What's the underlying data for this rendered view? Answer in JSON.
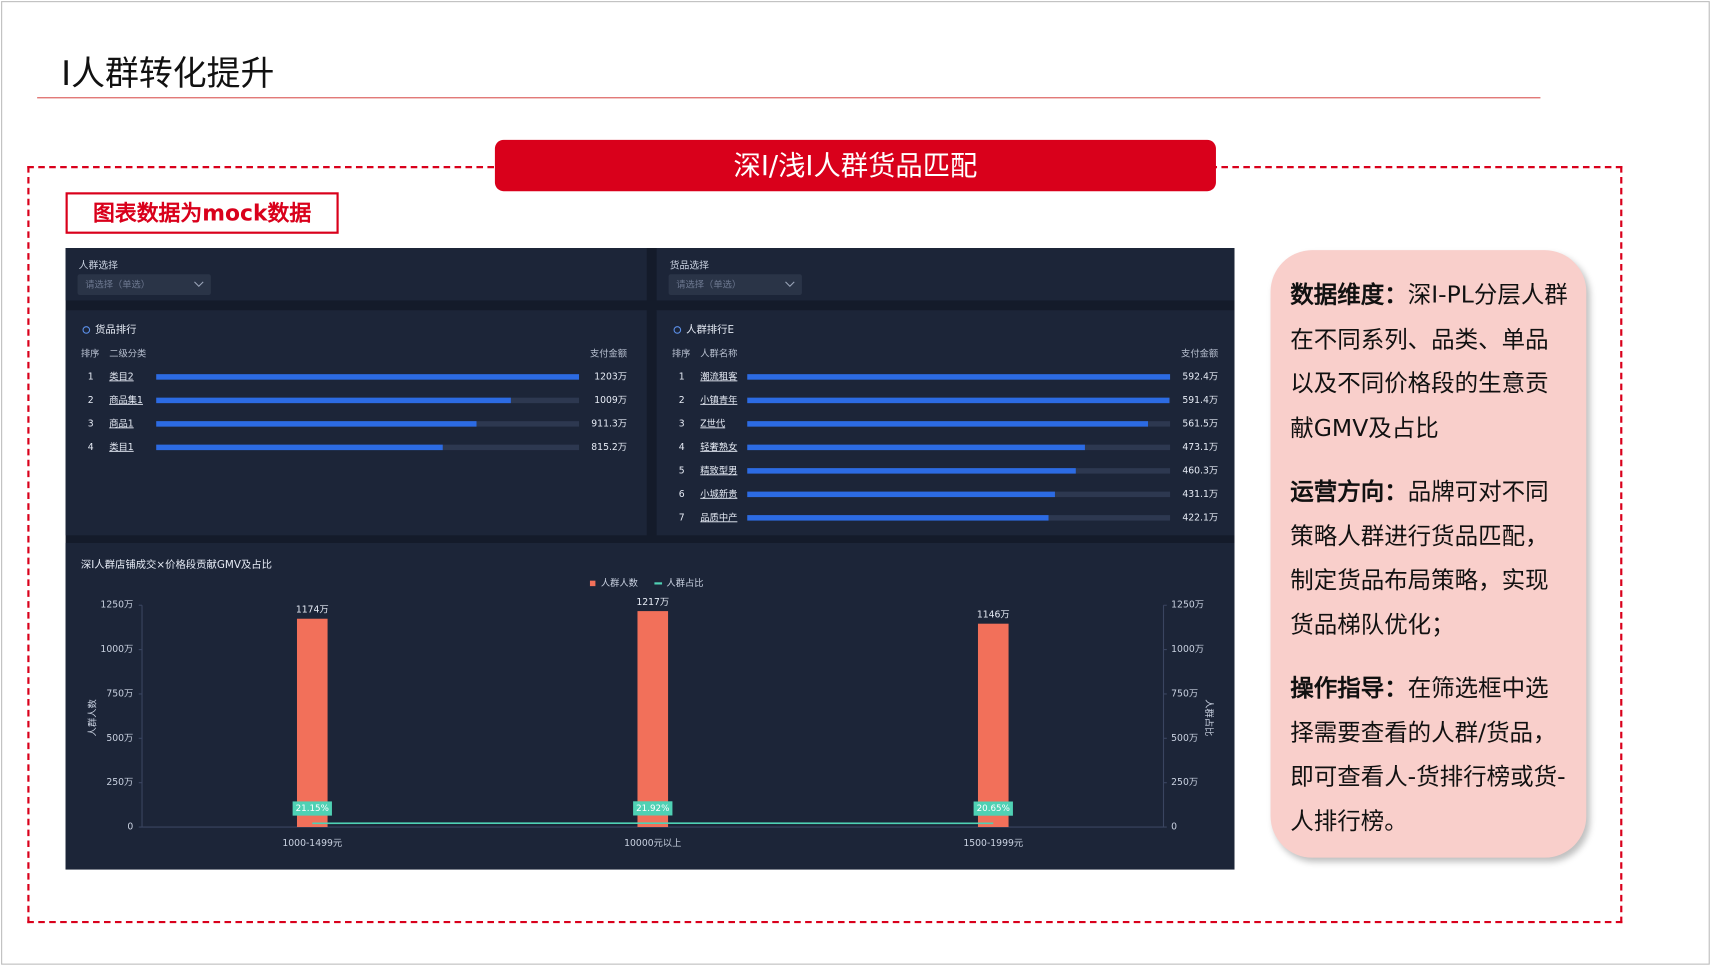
{
  "header": {
    "title": "I人群转化提升"
  },
  "banner": "深I/浅I人群货品匹配",
  "mock_note": "图表数据为mock数据",
  "dashboard": {
    "filters": [
      {
        "label": "人群选择",
        "placeholder": "请选择（单选）"
      },
      {
        "label": "货品选择",
        "placeholder": "请选择（单选）"
      }
    ],
    "rankings": [
      {
        "title": "货品排行",
        "headers": [
          "排序",
          "二级分类",
          "支付金额"
        ],
        "rows": [
          {
            "rank": 1,
            "name": "类目2",
            "value": 1203,
            "value_label": "1203万"
          },
          {
            "rank": 2,
            "name": "商品集1",
            "value": 1009,
            "value_label": "1009万"
          },
          {
            "rank": 3,
            "name": "商品1",
            "value": 911.3,
            "value_label": "911.3万"
          },
          {
            "rank": 4,
            "name": "类目1",
            "value": 815.2,
            "value_label": "815.2万"
          }
        ]
      },
      {
        "title": "人群排行E",
        "headers": [
          "排序",
          "人群名称",
          "支付金额"
        ],
        "rows": [
          {
            "rank": 1,
            "name": "潮流租客",
            "value": 592.4,
            "value_label": "592.4万"
          },
          {
            "rank": 2,
            "name": "小镇青年",
            "value": 591.4,
            "value_label": "591.4万"
          },
          {
            "rank": 3,
            "name": "Z世代",
            "value": 561.5,
            "value_label": "561.5万"
          },
          {
            "rank": 4,
            "name": "轻奢熟女",
            "value": 473.1,
            "value_label": "473.1万"
          },
          {
            "rank": 5,
            "name": "精致型男",
            "value": 460.3,
            "value_label": "460.3万"
          },
          {
            "rank": 6,
            "name": "小城新贵",
            "value": 431.1,
            "value_label": "431.1万"
          },
          {
            "rank": 7,
            "name": "品质中产",
            "value": 422.1,
            "value_label": "422.1万"
          }
        ]
      }
    ],
    "chart": {
      "type": "bar",
      "title": "深I人群店铺成交×价格段贡献GMV及占比",
      "y_label": "人群人数",
      "y2_label": "人群占比",
      "categories": [
        "1000-1499元",
        "10000元以上",
        "1500-1999元"
      ],
      "series": [
        {
          "name": "人群人数",
          "color": "#f2705a",
          "values": [
            1174,
            1217,
            1146
          ],
          "value_labels": [
            "1174万",
            "1217万",
            "1146万"
          ]
        },
        {
          "name": "人群占比",
          "color": "#4fd1b4",
          "axis": "y2",
          "values": [
            21.15,
            21.92,
            20.65
          ],
          "value_labels": [
            "21.15%",
            "21.92%",
            "20.65%"
          ]
        }
      ],
      "ylim": [
        0,
        1250
      ],
      "yticks": [
        0,
        {
          "value": 250,
          "label": "250万"
        },
        {
          "value": 500,
          "label": "500万"
        },
        {
          "value": 750,
          "label": "750万"
        },
        {
          "value": 1000,
          "label": "1000万"
        },
        {
          "value": 1250,
          "label": "1250万"
        }
      ],
      "y2lim": [
        0,
        1250
      ],
      "y2ticks": [
        0,
        {
          "value": 250,
          "label": "250万"
        },
        {
          "value": 500,
          "label": "500万"
        },
        {
          "value": 750,
          "label": "750万"
        },
        {
          "value": 1000,
          "label": "1000万"
        },
        {
          "value": 1250,
          "label": "1250万"
        }
      ]
    }
  },
  "side_panel": [
    {
      "heading": "数据维度：",
      "body": "深I-PL分层人群在不同系列、品类、单品以及不同价格段的生意贡献GMV及占比"
    },
    {
      "heading": "运营方向：",
      "body": "品牌可对不同策略人群进行货品匹配，制定货品布局策略，实现货品梯队优化；"
    },
    {
      "heading": "操作指导：",
      "body": "在筛选框中选择需要查看的人群/货品，即可查看人-货排行榜或货-人排行榜。"
    }
  ]
}
